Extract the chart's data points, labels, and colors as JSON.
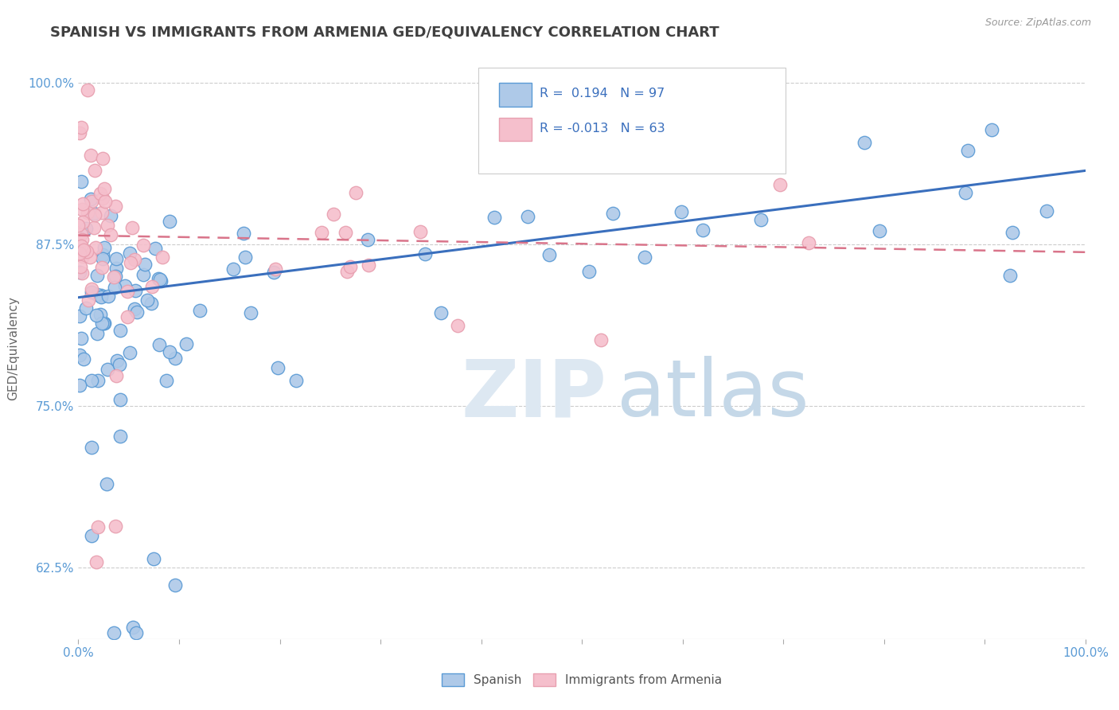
{
  "title": "SPANISH VS IMMIGRANTS FROM ARMENIA GED/EQUIVALENCY CORRELATION CHART",
  "source": "Source: ZipAtlas.com",
  "ylabel": "GED/Equivalency",
  "xlim": [
    0.0,
    1.0
  ],
  "ylim": [
    0.57,
    1.02
  ],
  "xtick_labels": [
    "0.0%",
    "100.0%"
  ],
  "ytick_labels": [
    "62.5%",
    "75.0%",
    "87.5%",
    "100.0%"
  ],
  "ytick_positions": [
    0.625,
    0.75,
    0.875,
    1.0
  ],
  "blue_color": "#aec9e8",
  "pink_color": "#f5bfcc",
  "blue_edge": "#5b9bd5",
  "pink_edge": "#e8a0b0",
  "blue_line_color": "#3a6fbd",
  "pink_line_color": "#d9748a",
  "R_blue": 0.194,
  "N_blue": 97,
  "R_pink": -0.013,
  "N_pink": 63,
  "legend_label_blue": "Spanish",
  "legend_label_pink": "Immigrants from Armenia",
  "blue_line_x0": 0.0,
  "blue_line_y0": 0.834,
  "blue_line_x1": 1.0,
  "blue_line_y1": 0.932,
  "pink_line_x0": 0.0,
  "pink_line_y0": 0.882,
  "pink_line_x1": 1.0,
  "pink_line_y1": 0.869,
  "background_color": "#ffffff",
  "grid_color": "#cccccc",
  "title_color": "#404040",
  "watermark_zip_color": "#dde8f0",
  "watermark_atlas_color": "#c8dcea"
}
